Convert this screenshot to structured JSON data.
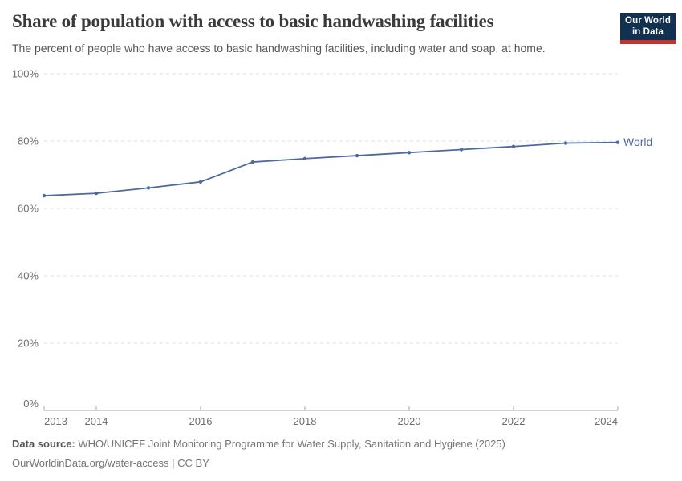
{
  "header": {
    "title": "Share of population with access to basic handwashing facilities",
    "subtitle": "The percent of people who have access to basic handwashing facilities, including water and soap, at home.",
    "logo": {
      "line1": "Our World",
      "line2": "in Data"
    }
  },
  "chart_data": {
    "type": "line",
    "title": "Share of population with access to basic handwashing facilities",
    "x": [
      2013,
      2014,
      2015,
      2016,
      2017,
      2018,
      2019,
      2020,
      2021,
      2022,
      2023,
      2024
    ],
    "series": [
      {
        "name": "World",
        "color": "#4C6A9C",
        "values": [
          63.8,
          64.5,
          66.1,
          67.9,
          73.8,
          74.8,
          75.7,
          76.6,
          77.5,
          78.4,
          79.4,
          79.6
        ]
      }
    ],
    "ylim": [
      0,
      100
    ],
    "yticks": [
      0,
      20,
      40,
      60,
      80,
      100
    ],
    "ytick_suffix": "%",
    "xticks": [
      2013,
      2014,
      2016,
      2018,
      2020,
      2022,
      2024
    ],
    "grid": true,
    "legend_position": "end-of-line",
    "axis_color": "#a6a6a6",
    "grid_color": "#dcdcdc",
    "tick_label_color": "#6e6e6e"
  },
  "footer": {
    "source_label": "Data source:",
    "source_text": "WHO/UNICEF Joint Monitoring Programme for Water Supply, Sanitation and Hygiene (2025)",
    "attribution": "OurWorldinData.org/water-access | CC BY"
  }
}
